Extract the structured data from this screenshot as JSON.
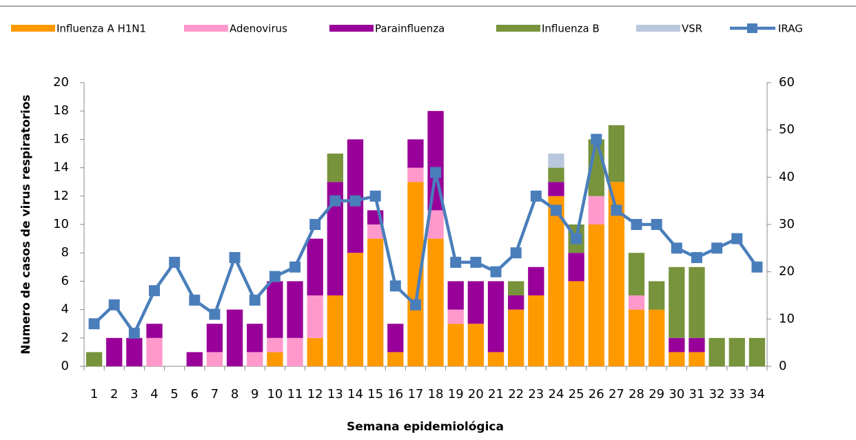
{
  "chart_data": {
    "type": "bar-line",
    "x_label": "Semana epidemiológica",
    "y_label": "Numero de casos de virus respiratorios",
    "categories": [
      "1",
      "2",
      "3",
      "4",
      "5",
      "6",
      "7",
      "8",
      "9",
      "10",
      "11",
      "12",
      "13",
      "14",
      "15",
      "16",
      "17",
      "18",
      "19",
      "20",
      "21",
      "22",
      "23",
      "24",
      "25",
      "26",
      "27",
      "28",
      "29",
      "30",
      "31",
      "32",
      "33",
      "34"
    ],
    "ylim": [
      0,
      20
    ],
    "yticks": [
      0,
      2,
      4,
      6,
      8,
      10,
      12,
      14,
      16,
      18,
      20
    ],
    "y2lim": [
      0,
      60
    ],
    "y2ticks": [
      0,
      10,
      20,
      30,
      40,
      50,
      60
    ],
    "grid": false,
    "legend": "top",
    "series": [
      {
        "name": "Influenza A H1N1",
        "color": "#FF9900",
        "type": "bar",
        "values": [
          0,
          0,
          0,
          0,
          0,
          0,
          0,
          0,
          0,
          1,
          0,
          2,
          5,
          8,
          9,
          1,
          13,
          9,
          3,
          3,
          1,
          4,
          5,
          12,
          6,
          10,
          13,
          4,
          4,
          1,
          1,
          0,
          0,
          0
        ]
      },
      {
        "name": "Adenovirus",
        "color": "#FF99CC",
        "type": "bar",
        "values": [
          0,
          0,
          0,
          2,
          0,
          0,
          1,
          0,
          1,
          1,
          2,
          3,
          0,
          0,
          1,
          0,
          1,
          2,
          1,
          0,
          0,
          0,
          0,
          0,
          0,
          2,
          0,
          1,
          0,
          0,
          0,
          0,
          0,
          0
        ]
      },
      {
        "name": "Parainfluenza",
        "color": "#990099",
        "type": "bar",
        "values": [
          0,
          2,
          2,
          1,
          0,
          1,
          2,
          4,
          2,
          4,
          4,
          4,
          8,
          8,
          1,
          2,
          2,
          7,
          2,
          3,
          5,
          1,
          2,
          1,
          2,
          0,
          0,
          0,
          0,
          1,
          1,
          0,
          0,
          0
        ]
      },
      {
        "name": "Influenza B",
        "color": "#77933C",
        "type": "bar",
        "values": [
          1,
          0,
          0,
          0,
          0,
          0,
          0,
          0,
          0,
          0,
          0,
          0,
          2,
          0,
          0,
          0,
          0,
          0,
          0,
          0,
          0,
          1,
          0,
          1,
          2,
          4,
          4,
          3,
          2,
          5,
          5,
          2,
          2,
          2
        ]
      },
      {
        "name": "VSR",
        "color": "#B9C7DD",
        "type": "bar",
        "values": [
          0,
          0,
          0,
          0,
          0,
          0,
          0,
          0,
          0,
          0,
          0,
          0,
          0,
          0,
          0,
          0,
          0,
          0,
          0,
          0,
          0,
          0,
          0,
          1,
          0,
          0,
          0,
          0,
          0,
          0,
          0,
          0,
          0,
          0
        ]
      },
      {
        "name": "IRAG",
        "color": "#4A7EBB",
        "type": "line",
        "axis": "y2",
        "values": [
          9,
          13,
          7,
          16,
          22,
          14,
          11,
          23,
          14,
          19,
          21,
          30,
          35,
          35,
          36,
          17,
          13,
          41,
          22,
          22,
          20,
          24,
          36,
          33,
          27,
          48,
          33,
          30,
          30,
          25,
          23,
          25,
          27,
          21
        ]
      }
    ]
  }
}
